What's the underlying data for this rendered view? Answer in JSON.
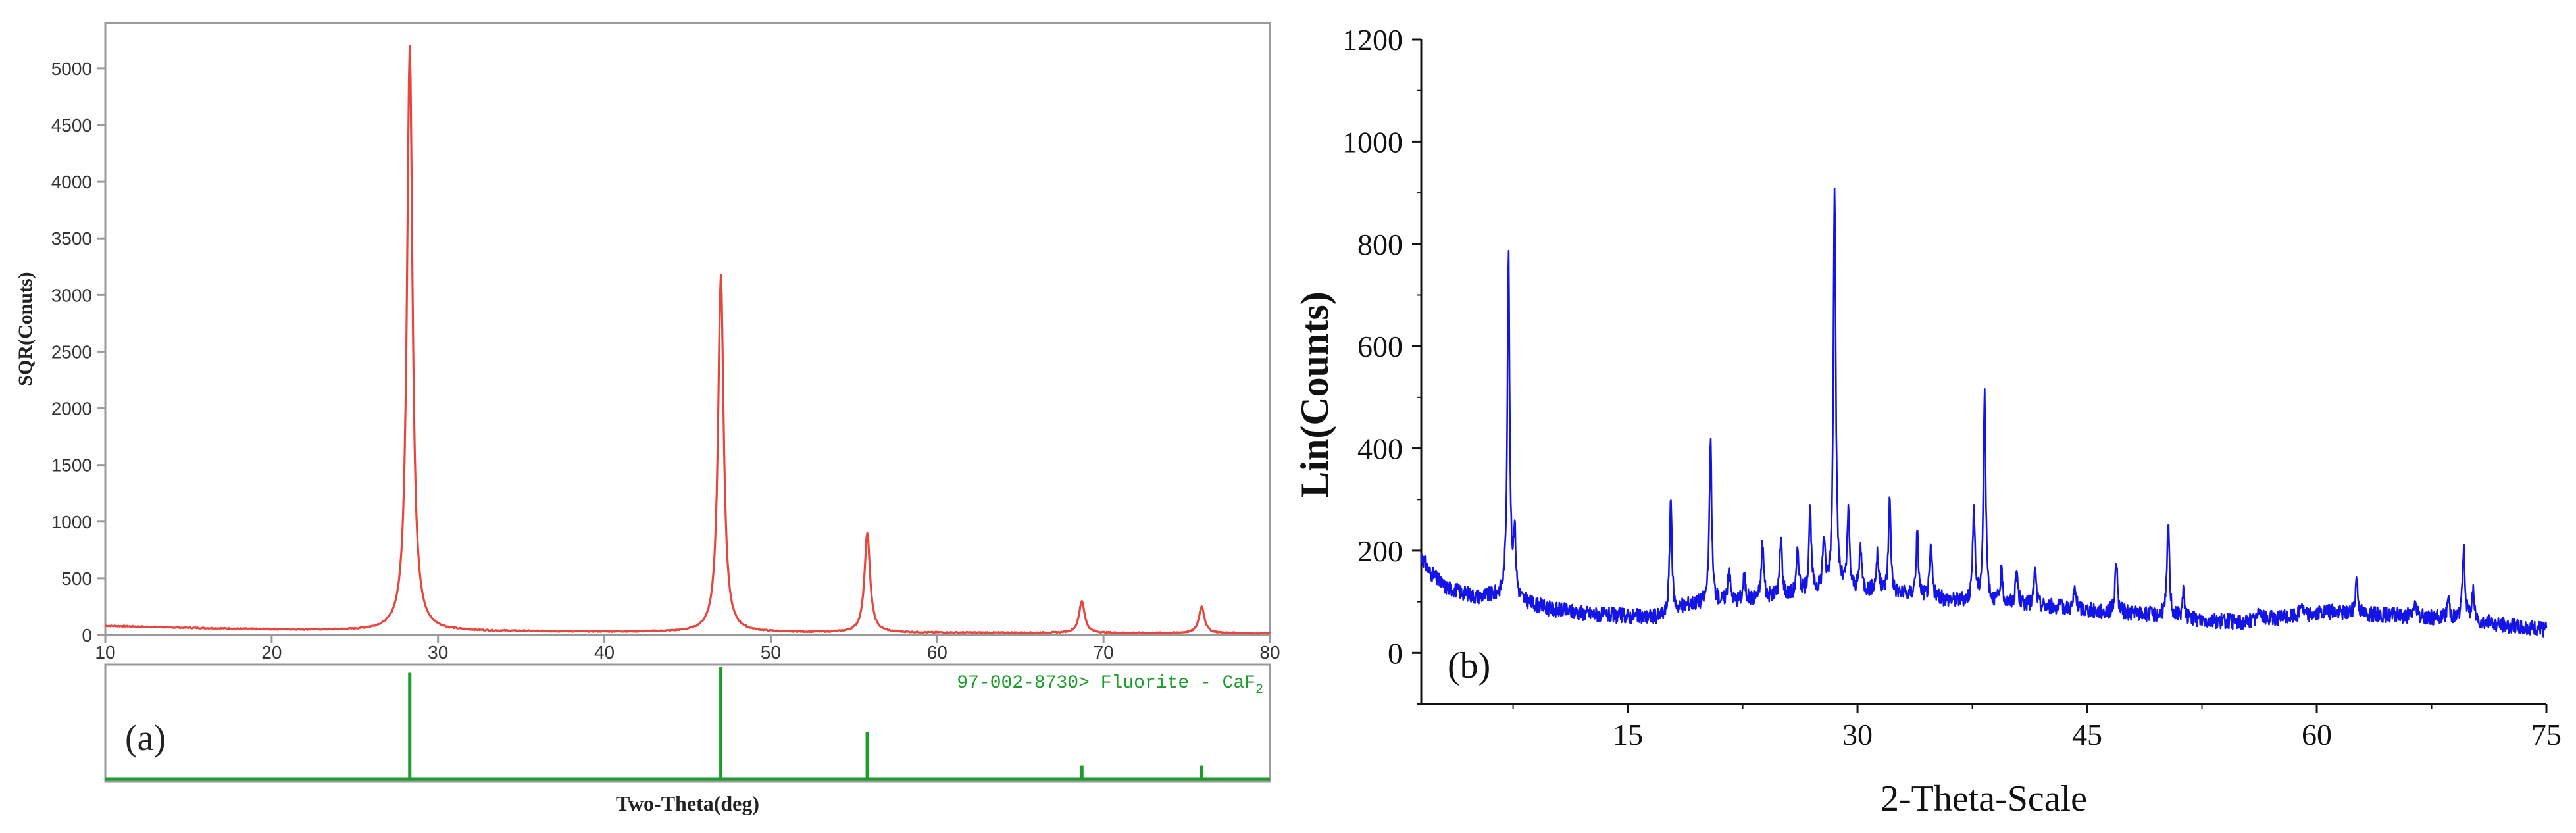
{
  "chart_data": [
    {
      "type": "line",
      "panel_label": "(a)",
      "xlabel": "Two-Theta(deg)",
      "ylabel": "SQR(Conuts)",
      "xlim": [
        10,
        80
      ],
      "ylim": [
        0,
        5400
      ],
      "x_ticks": [
        10,
        20,
        30,
        40,
        50,
        60,
        70,
        80
      ],
      "y_ticks": [
        0,
        500,
        1000,
        1500,
        2000,
        2500,
        3000,
        3500,
        4000,
        4500,
        5000
      ],
      "grid": false,
      "baseline": [
        [
          10,
          80
        ],
        [
          15,
          62
        ],
        [
          20,
          48
        ],
        [
          25,
          40
        ],
        [
          30,
          35
        ],
        [
          40,
          28
        ],
        [
          50,
          24
        ],
        [
          60,
          20
        ],
        [
          70,
          17
        ],
        [
          80,
          15
        ]
      ],
      "peaks": [
        {
          "x": 28.3,
          "y": 5200
        },
        {
          "x": 47.0,
          "y": 3180
        },
        {
          "x": 55.8,
          "y": 900
        },
        {
          "x": 68.7,
          "y": 300
        },
        {
          "x": 75.9,
          "y": 250
        }
      ],
      "colors": {
        "pattern": "#e8453c",
        "reference": "#1a9e2a"
      },
      "reference": {
        "label_code": "97-002-8730>",
        "label_name": "Fluorite - CaF",
        "label_subscript": "2",
        "lines": [
          {
            "x": 28.3,
            "height": 0.95
          },
          {
            "x": 47.0,
            "height": 1.0
          },
          {
            "x": 55.8,
            "height": 0.42
          },
          {
            "x": 68.7,
            "height": 0.12
          },
          {
            "x": 75.9,
            "height": 0.12
          }
        ]
      }
    },
    {
      "type": "line",
      "panel_label": "(b)",
      "xlabel": "2-Theta-Scale",
      "ylabel": "Lin(Counts)",
      "xlim": [
        1.5,
        75
      ],
      "ylim": [
        -100,
        1200
      ],
      "x_ticks": [
        15,
        30,
        45,
        60,
        75
      ],
      "y_ticks": [
        0,
        200,
        400,
        600,
        800,
        1000,
        1200
      ],
      "grid": false,
      "color": "#1414e6",
      "baseline": [
        [
          1.5,
          190
        ],
        [
          2,
          160
        ],
        [
          3,
          130
        ],
        [
          5,
          110
        ],
        [
          6.5,
          110
        ],
        [
          8,
          100
        ],
        [
          10,
          85
        ],
        [
          13,
          75
        ],
        [
          16,
          70
        ],
        [
          17.5,
          70
        ],
        [
          19,
          95
        ],
        [
          22,
          100
        ],
        [
          25,
          110
        ],
        [
          28,
          120
        ],
        [
          31,
          120
        ],
        [
          34,
          110
        ],
        [
          37,
          100
        ],
        [
          40,
          95
        ],
        [
          43,
          90
        ],
        [
          46,
          80
        ],
        [
          49,
          75
        ],
        [
          52,
          65
        ],
        [
          55,
          60
        ],
        [
          58,
          70
        ],
        [
          61,
          80
        ],
        [
          64,
          75
        ],
        [
          67,
          70
        ],
        [
          70,
          65
        ],
        [
          72,
          55
        ],
        [
          75,
          45
        ]
      ],
      "peaks": [
        {
          "x": 7.2,
          "y": 780
        },
        {
          "x": 7.6,
          "y": 230
        },
        {
          "x": 17.8,
          "y": 305
        },
        {
          "x": 20.4,
          "y": 410
        },
        {
          "x": 21.6,
          "y": 170
        },
        {
          "x": 22.6,
          "y": 150
        },
        {
          "x": 23.8,
          "y": 215
        },
        {
          "x": 25.0,
          "y": 225
        },
        {
          "x": 26.1,
          "y": 200
        },
        {
          "x": 26.9,
          "y": 280
        },
        {
          "x": 27.8,
          "y": 220
        },
        {
          "x": 28.5,
          "y": 920
        },
        {
          "x": 29.4,
          "y": 270
        },
        {
          "x": 30.2,
          "y": 205
        },
        {
          "x": 31.3,
          "y": 190
        },
        {
          "x": 32.1,
          "y": 300
        },
        {
          "x": 33.9,
          "y": 235
        },
        {
          "x": 34.8,
          "y": 210
        },
        {
          "x": 37.6,
          "y": 280
        },
        {
          "x": 38.3,
          "y": 505
        },
        {
          "x": 39.4,
          "y": 155
        },
        {
          "x": 40.4,
          "y": 160
        },
        {
          "x": 41.6,
          "y": 160
        },
        {
          "x": 44.2,
          "y": 125
        },
        {
          "x": 46.9,
          "y": 180
        },
        {
          "x": 50.3,
          "y": 260
        },
        {
          "x": 51.3,
          "y": 120
        },
        {
          "x": 56.3,
          "y": 95
        },
        {
          "x": 59.0,
          "y": 100
        },
        {
          "x": 62.6,
          "y": 150
        },
        {
          "x": 66.4,
          "y": 100
        },
        {
          "x": 68.6,
          "y": 110
        },
        {
          "x": 69.6,
          "y": 210
        },
        {
          "x": 70.2,
          "y": 120
        }
      ]
    }
  ]
}
